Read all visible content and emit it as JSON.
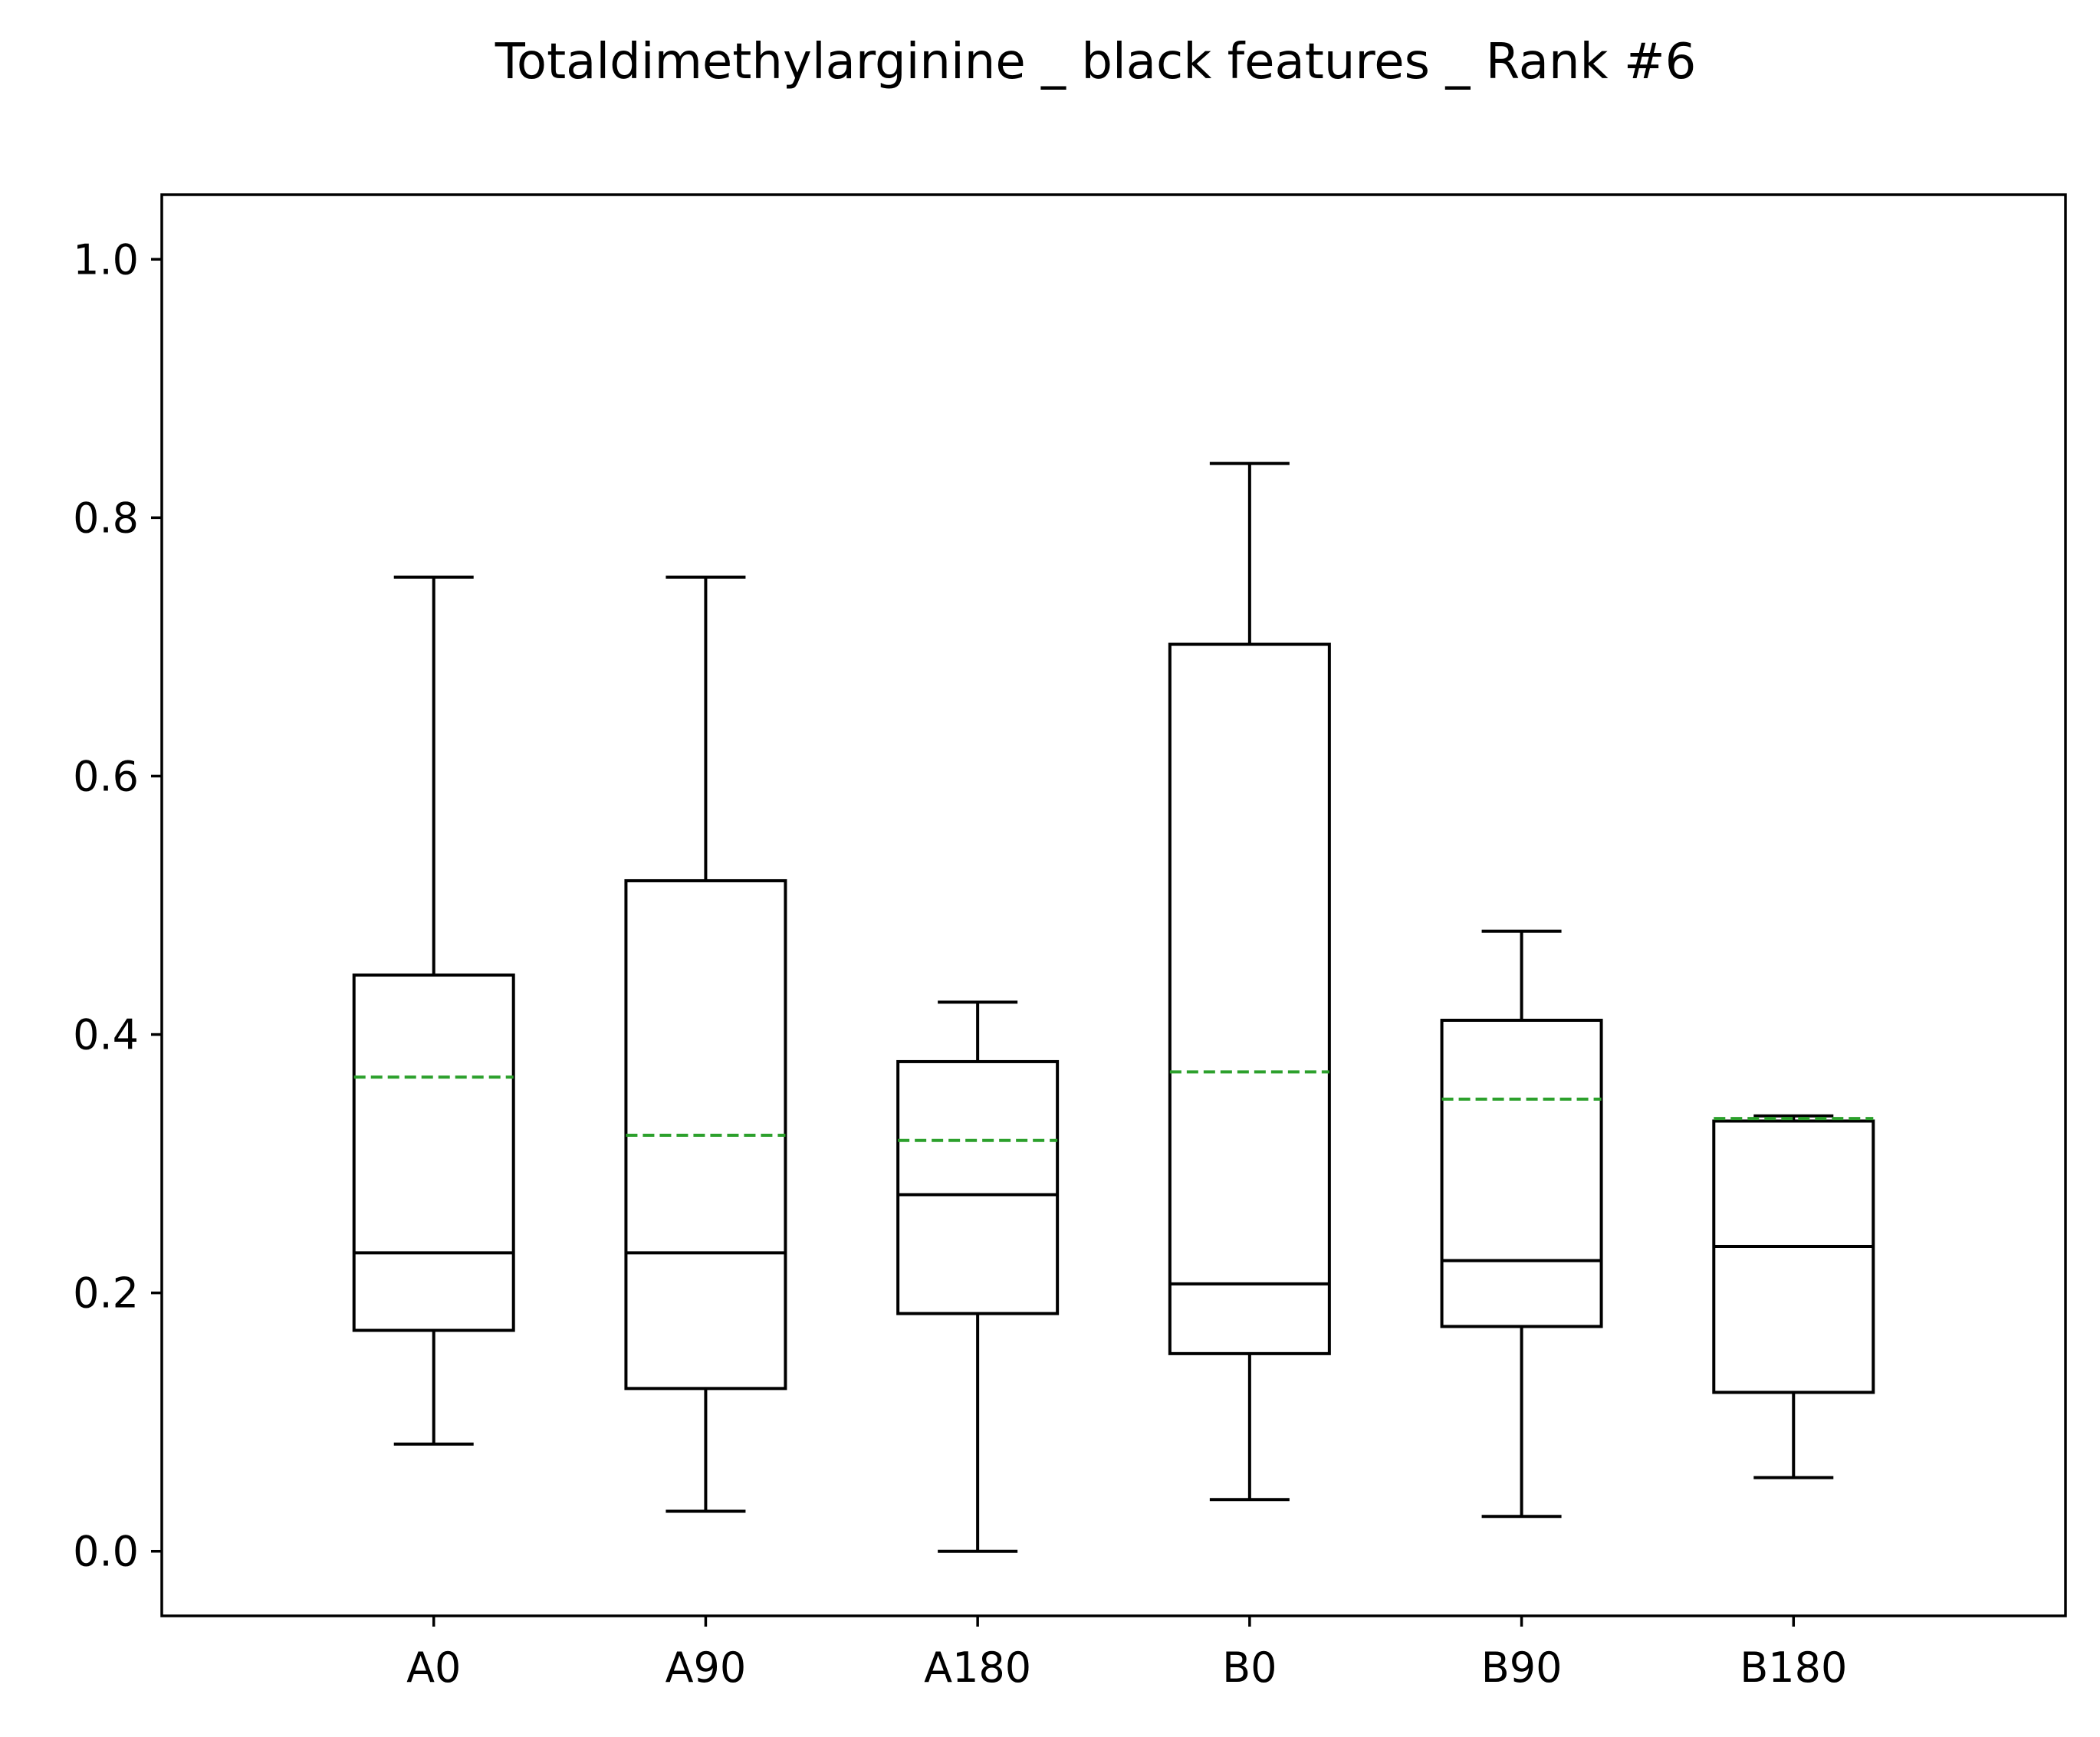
{
  "chart_data": {
    "type": "box",
    "title": "Totaldimethylarginine _ black features _ Rank #6",
    "xlabel": "",
    "ylabel": "",
    "ylim": [
      -0.05,
      1.05
    ],
    "yticks": [
      "0.0",
      "0.2",
      "0.4",
      "0.6",
      "0.8",
      "1.0"
    ],
    "grid": false,
    "categories": [
      "A0",
      "A90",
      "A180",
      "B0",
      "B90",
      "B180"
    ],
    "boxes": [
      {
        "label": "A0",
        "whisker_low": 0.083,
        "q1": 0.171,
        "median": 0.231,
        "q3": 0.446,
        "whisker_high": 0.754,
        "mean": 0.367
      },
      {
        "label": "A90",
        "whisker_low": 0.031,
        "q1": 0.126,
        "median": 0.231,
        "q3": 0.519,
        "whisker_high": 0.754,
        "mean": 0.322
      },
      {
        "label": "A180",
        "whisker_low": 0.0,
        "q1": 0.184,
        "median": 0.276,
        "q3": 0.379,
        "whisker_high": 0.425,
        "mean": 0.318
      },
      {
        "label": "B0",
        "whisker_low": 0.04,
        "q1": 0.153,
        "median": 0.207,
        "q3": 0.702,
        "whisker_high": 0.842,
        "mean": 0.371
      },
      {
        "label": "B90",
        "whisker_low": 0.027,
        "q1": 0.174,
        "median": 0.225,
        "q3": 0.411,
        "whisker_high": 0.48,
        "mean": 0.35
      },
      {
        "label": "B180",
        "whisker_low": 0.057,
        "q1": 0.123,
        "median": 0.236,
        "q3": 0.333,
        "whisker_high": 0.337,
        "mean": 0.335
      }
    ],
    "colors": {
      "box": "#000000",
      "mean_line": "#2ca02c",
      "background": "#ffffff"
    }
  }
}
